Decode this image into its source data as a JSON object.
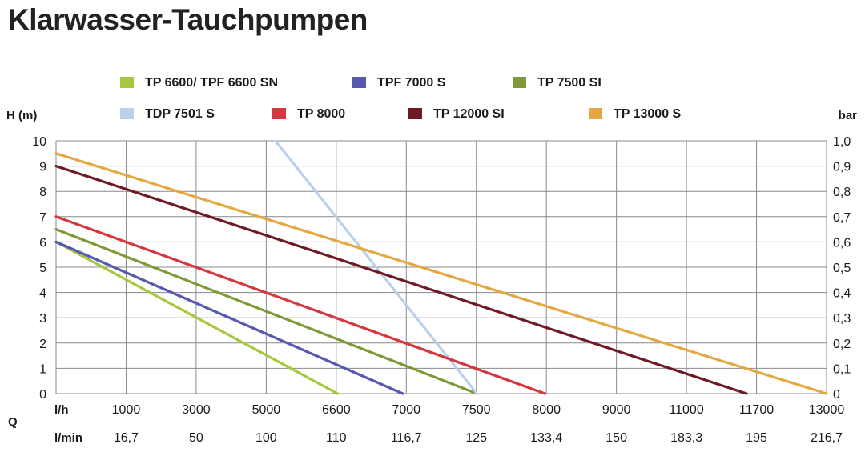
{
  "title": "Klarwasser-Tauchpumpen",
  "chart_data": {
    "type": "line",
    "title": "Klarwasser-Tauchpumpen",
    "ylabel_left": "H (m)",
    "ylabel_right": "bar",
    "xlabel": "Q",
    "x_row1_unit": "l/h",
    "x_row2_unit": "l/min",
    "grid": true,
    "legend_position": "top",
    "ylim": [
      0,
      10
    ],
    "y_ticks_left": [
      "0",
      "1",
      "2",
      "3",
      "4",
      "5",
      "6",
      "7",
      "8",
      "9",
      "10"
    ],
    "y_ticks_right": [
      "0",
      "0,1",
      "0,2",
      "0,3",
      "0,4",
      "0,5",
      "0,6",
      "0,7",
      "0,8",
      "0,9",
      "1,0"
    ],
    "x_row1_ticks": [
      "1000",
      "3000",
      "5000",
      "6600",
      "7000",
      "7500",
      "8000",
      "9000",
      "11000",
      "11700",
      "13000"
    ],
    "x_row2_ticks": [
      "16,7",
      "50",
      "100",
      "110",
      "116,7",
      "125",
      "133,4",
      "150",
      "183,3",
      "195",
      "216,7"
    ],
    "x_span": [
      0,
      13000
    ],
    "series": [
      {
        "name": "TP 6600/ TPF 6600 SN",
        "color": "#a6c93c",
        "points": [
          [
            0,
            6.0
          ],
          [
            4750,
            0
          ]
        ]
      },
      {
        "name": "TPF 7000 S",
        "color": "#5758b0",
        "points": [
          [
            0,
            6.0
          ],
          [
            5850,
            0
          ]
        ]
      },
      {
        "name": "TP 7500 SI",
        "color": "#7e9a36",
        "points": [
          [
            0,
            6.5
          ],
          [
            7100,
            0
          ]
        ]
      },
      {
        "name": "TDP 7501 S",
        "color": "#b9d1ea",
        "points": [
          [
            3700,
            10.0
          ],
          [
            7100,
            0
          ]
        ]
      },
      {
        "name": "TP 8000",
        "color": "#d6363d",
        "points": [
          [
            0,
            7.0
          ],
          [
            8250,
            0
          ]
        ]
      },
      {
        "name": "TP 12000 SI",
        "color": "#6e1a25",
        "points": [
          [
            0,
            9.0
          ],
          [
            11650,
            0
          ]
        ]
      },
      {
        "name": "TP 13000 S",
        "color": "#e4a843",
        "points": [
          [
            0,
            9.5
          ],
          [
            13000,
            0
          ]
        ]
      }
    ]
  }
}
